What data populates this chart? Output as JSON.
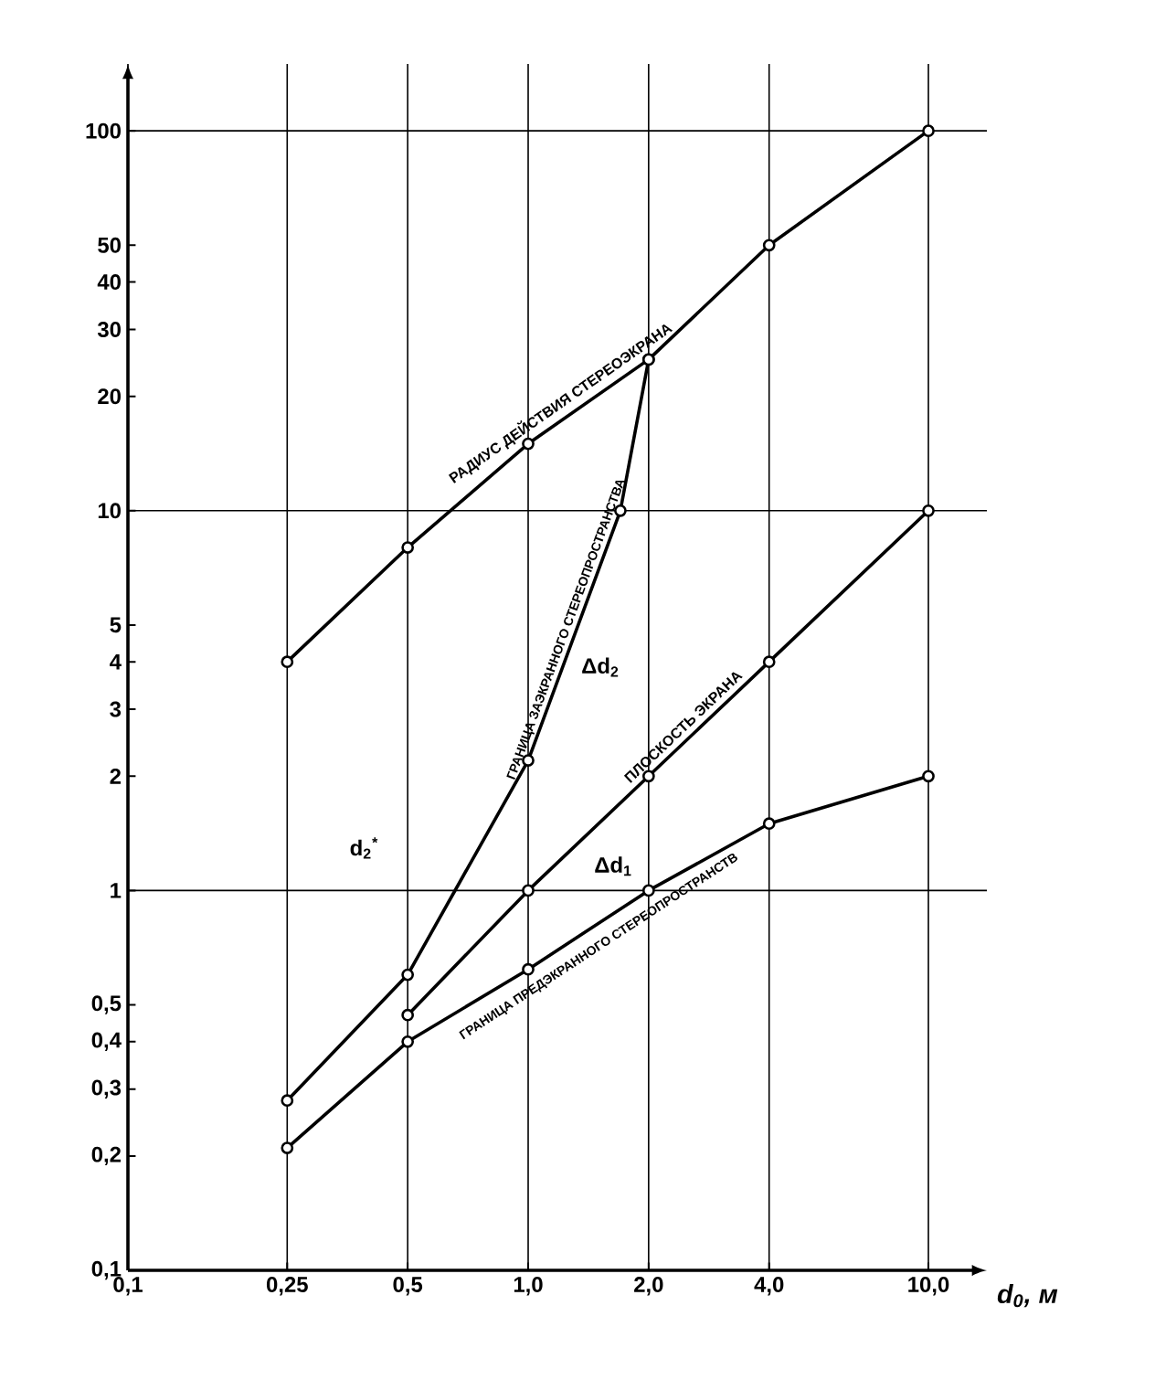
{
  "chart_data": {
    "type": "line",
    "xlabel": "d$_{0}$, м",
    "log": "xy",
    "xlim": [
      0.1,
      14
    ],
    "ylim": [
      0.1,
      150
    ],
    "xticks": [
      {
        "value": 0.1,
        "label": "0,1"
      },
      {
        "value": 0.25,
        "label": "0,25"
      },
      {
        "value": 0.5,
        "label": "0,5"
      },
      {
        "value": 1,
        "label": "1,0"
      },
      {
        "value": 2,
        "label": "2,0"
      },
      {
        "value": 4,
        "label": "4,0"
      },
      {
        "value": 10,
        "label": "10,0"
      }
    ],
    "yticks": [
      {
        "value": 0.1,
        "label": "0,1"
      },
      {
        "value": 0.2,
        "label": "0,2"
      },
      {
        "value": 0.3,
        "label": "0,3"
      },
      {
        "value": 0.4,
        "label": "0,4"
      },
      {
        "value": 0.5,
        "label": "0,5"
      },
      1,
      2,
      3,
      4,
      5,
      10,
      20,
      30,
      40,
      50,
      100
    ],
    "grid": "x",
    "marker": "circle",
    "series": [
      {
        "name": "РАДИУС ДЕЙСТВИЯ СТЕРЕОЭКРАНА",
        "color": "#000000",
        "x": [
          0.25,
          0.5,
          1,
          2,
          4,
          10
        ],
        "values": [
          4,
          8,
          15,
          25,
          50,
          100
        ]
      },
      {
        "name": "ГРАНИЦА ЗАЭКРАННОГО СТЕРЕОПРОСТРАНСТВА",
        "color": "#000000",
        "x": [
          0.25,
          0.5,
          1,
          1.7,
          2
        ],
        "values": [
          0.28,
          0.6,
          2.2,
          10,
          25
        ]
      },
      {
        "name": "ПЛОСКОСТЬ ЭКРАНА",
        "color": "#000000",
        "x": [
          0.5,
          1,
          2,
          4,
          10
        ],
        "values": [
          0.47,
          1,
          2,
          4,
          10
        ]
      },
      {
        "name": "ГРАНИЦА ПРЕДЭКРАННОГО СТЕРЕОПРОСТРАНСТВ",
        "color": "#000000",
        "x": [
          0.25,
          0.5,
          1,
          2,
          4,
          10
        ],
        "values": [
          0.21,
          0.4,
          0.62,
          1,
          1.5,
          2
        ]
      }
    ],
    "ref_lines": [
      {
        "axis": "y",
        "value": 1
      },
      {
        "axis": "y",
        "value": 10
      },
      {
        "axis": "y",
        "value": 100
      }
    ],
    "annotations": [
      "d$_{2}$$^{*}$",
      "Δd$_{2}$",
      "Δd$_{1}$"
    ]
  }
}
